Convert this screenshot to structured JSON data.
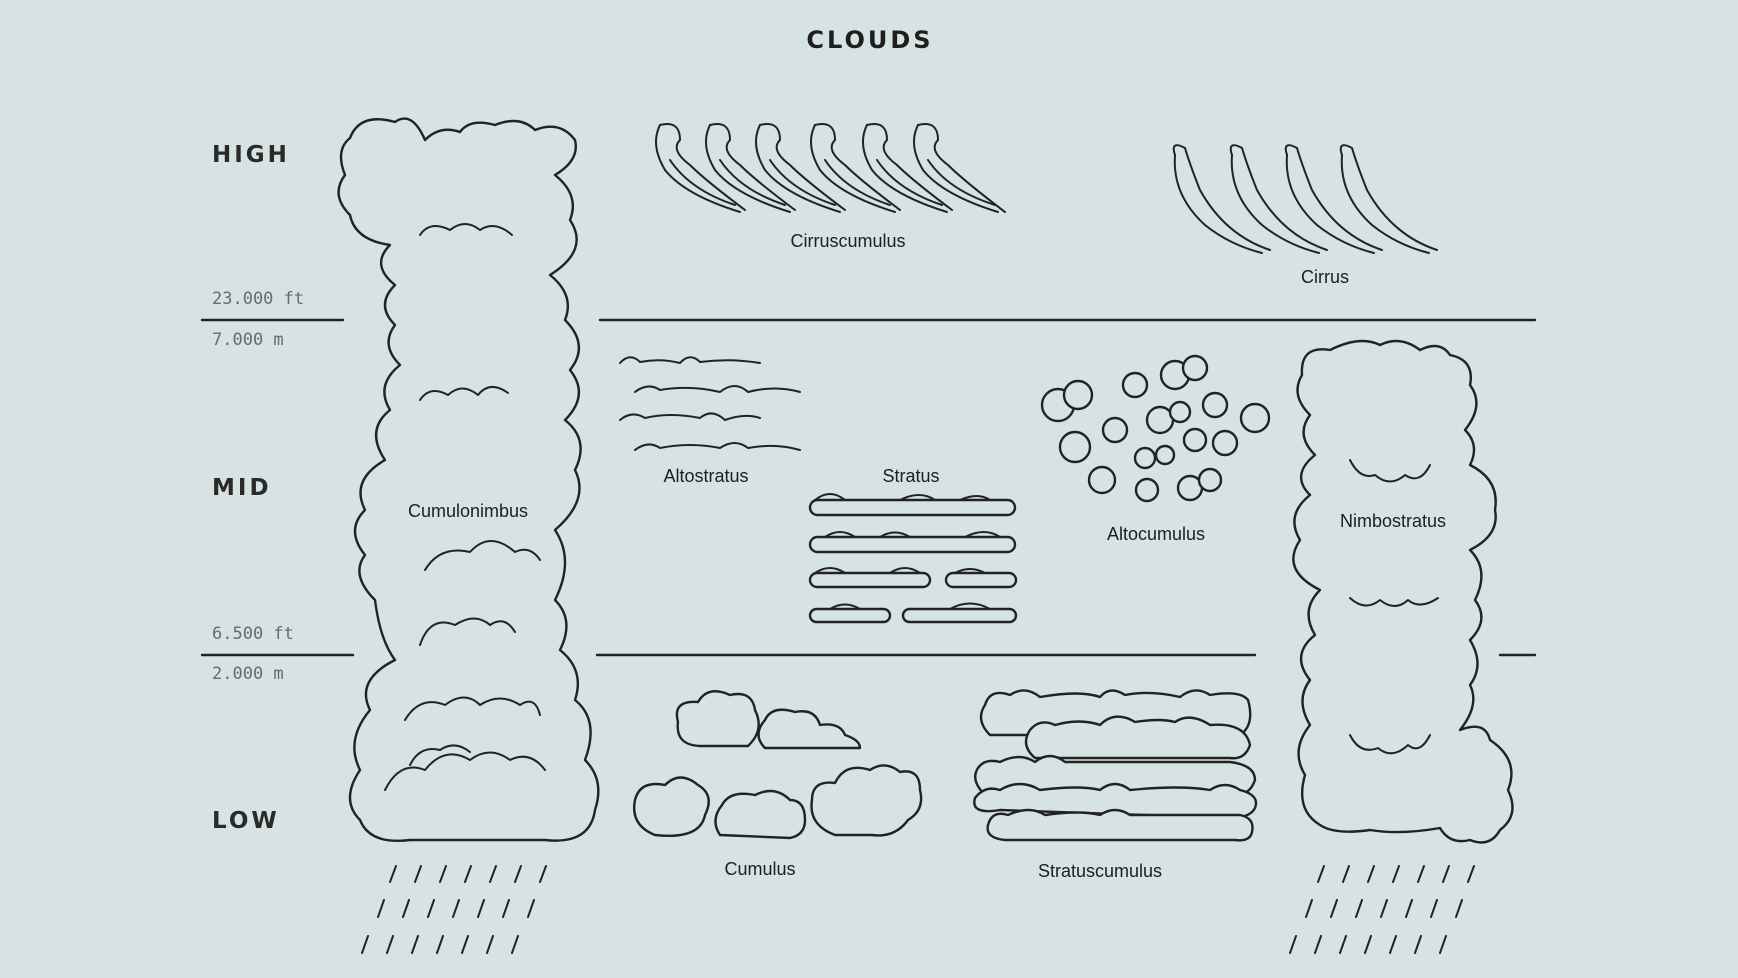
{
  "title": "CLOUDS",
  "levels": {
    "high": "HIGH",
    "mid": "MID",
    "low": "LOW"
  },
  "boundaries": {
    "upper": {
      "ft": "23.000 ft",
      "m": "7.000 m"
    },
    "lower": {
      "ft": "6.500 ft",
      "m": "2.000 m"
    }
  },
  "clouds": {
    "cirruscumulus": "Cirruscumulus",
    "cirrus": "Cirrus",
    "cumulonimbus": "Cumulonimbus",
    "altostratus": "Altostratus",
    "stratus": "Stratus",
    "altocumulus": "Altocumulus",
    "nimbostratus": "Nimbostratus",
    "cumulus": "Cumulus",
    "stratuscumulus": "Stratuscumulus"
  },
  "colors": {
    "background": "#d7e2e3",
    "line": "#222222"
  }
}
